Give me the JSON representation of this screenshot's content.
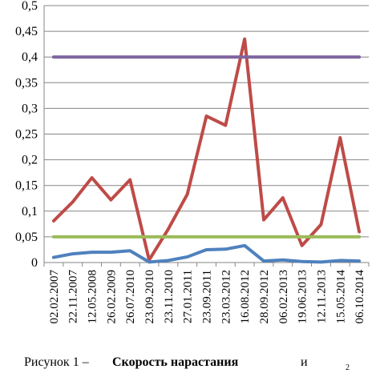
{
  "chart_data": {
    "type": "line",
    "categories": [
      "02.02.2007",
      "22.11.2007",
      "12.05.2008",
      "26.02.2009",
      "26.07.2010",
      "23.09.2010",
      "23.11.2010",
      "27.01.2011",
      "23.09.2011",
      "23.03.2012",
      "16.08.2012",
      "28.09.2012",
      "06.02.2013",
      "19.06.2013",
      "12.11.2013",
      "15.05.2014",
      "06.10.2014"
    ],
    "ylim": [
      0,
      0.5
    ],
    "yticks": [
      "0",
      "0,05",
      "0,1",
      "0,15",
      "0,2",
      "0,25",
      "0,3",
      "0,35",
      "0,4",
      "0,45",
      "0,5"
    ],
    "grid": true,
    "series": [
      {
        "color": "#BE4B48",
        "values": [
          0.081,
          0.118,
          0.165,
          0.122,
          0.161,
          0.005,
          0.065,
          0.133,
          0.285,
          0.267,
          0.435,
          0.083,
          0.126,
          0.033,
          0.074,
          0.243,
          0.06
        ]
      },
      {
        "color": "#4F81BD",
        "values": [
          0.01,
          0.017,
          0.02,
          0.02,
          0.023,
          0.001,
          0.004,
          0.011,
          0.025,
          0.026,
          0.033,
          0.003,
          0.005,
          0.002,
          0.001,
          0.004,
          0.003
        ]
      },
      {
        "color": "#7E649E",
        "values": [
          0.4,
          0.4,
          0.4,
          0.4,
          0.4,
          0.4,
          0.4,
          0.4,
          0.4,
          0.4,
          0.4,
          0.4,
          0.4,
          0.4,
          0.4,
          0.4,
          0.4
        ]
      },
      {
        "color": "#9BBB59",
        "values": [
          0.05,
          0.05,
          0.05,
          0.05,
          0.05,
          0.05,
          0.05,
          0.05,
          0.05,
          0.05,
          0.05,
          0.05,
          0.05,
          0.05,
          0.05,
          0.05,
          0.05
        ]
      }
    ]
  },
  "caption": {
    "prefix": "Рисунок 1 –",
    "bold": "Скорость нарастания",
    "conj": "и",
    "sub": "2"
  }
}
